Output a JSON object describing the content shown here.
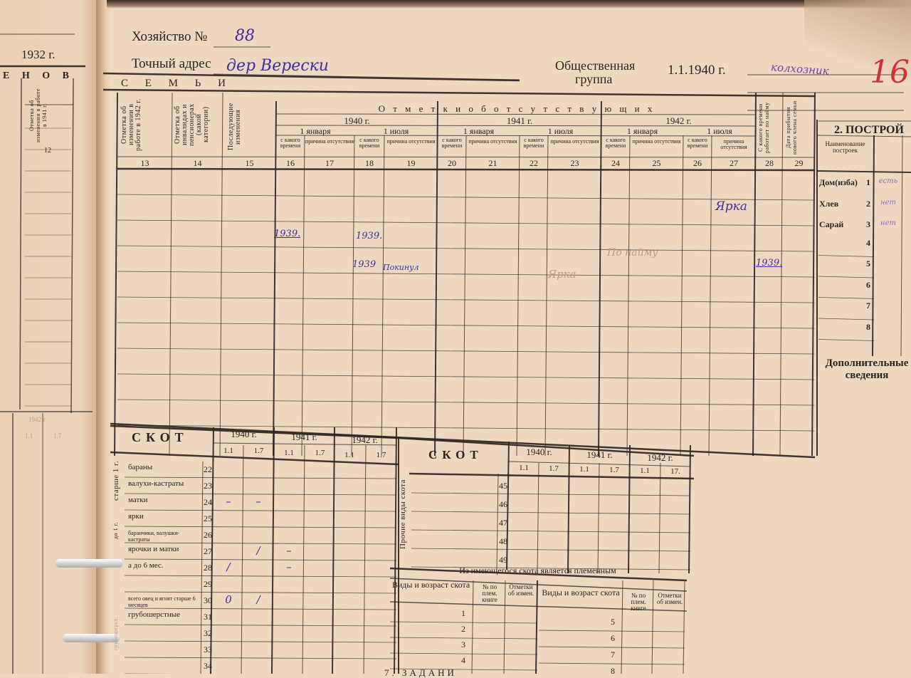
{
  "header": {
    "farm_label": "Хозяйство №",
    "farm_number": "88",
    "address_label": "Точный адрес",
    "address_value": "дер Верески",
    "group_label_line1": "Общественная",
    "group_label_line2": "группа",
    "group_date": "1.1.1940 г.",
    "group_value": "колхозник",
    "red_mark": "16"
  },
  "left_page": {
    "year": "1932 г.",
    "heading": "Е Н О В",
    "column_header": "Отметка об изменении в работе в 1941 г.",
    "column_number": "12",
    "bottom_year": "1942 г.",
    "bottom_periods": [
      "1.1",
      "1.7"
    ]
  },
  "families": {
    "title": "С Е М Ь И",
    "col13": "Отметка об изменении в работе в 1942 г.",
    "col14": "Отметка об инвалидах и пенсионерах (какой категории)",
    "col15": "Последующие изменения",
    "absence_title": "О т м е т к и   о б   о т с у т с т в у ю щ и х",
    "years": [
      "1940 г.",
      "1941 г.",
      "1942 г."
    ],
    "periods": [
      "1 января",
      "1 июля",
      "1 января",
      "1 июля",
      "1 января",
      "1 июля"
    ],
    "since_label": "с какого времени",
    "reason_label": "причина отсутствия",
    "col28": "С какого времени работает по найму",
    "col29": "Дата прибытия нового члена семьи",
    "column_numbers": [
      "13",
      "14",
      "15",
      "16",
      "17",
      "18",
      "19",
      "20",
      "21",
      "22",
      "23",
      "24",
      "25",
      "26",
      "27",
      "28",
      "29"
    ],
    "entries": {
      "col27_row2": "Ярка",
      "col16_row3": "1939.",
      "col18_row3": "1939.",
      "col18_row4": "1939",
      "col19_row4": "Покинул",
      "col24_row4": "По найму",
      "col22_row5": "Ярка",
      "col28_row4": "1939."
    }
  },
  "livestock_left": {
    "title": "СКОТ",
    "years": [
      "1940 г.",
      "1941 г.",
      "1942 г."
    ],
    "periods": [
      "1.1",
      "1.7"
    ],
    "group_older": "старше 1 г.",
    "group_younger": "до 1 г.",
    "group_coarse": "грубошерст.",
    "rows": [
      {
        "label": "бараны",
        "num": "22",
        "values": [
          "",
          "",
          "",
          "",
          "",
          ""
        ]
      },
      {
        "label": "валухи-кастраты",
        "num": "23",
        "values": [
          "",
          "",
          "",
          "",
          "",
          ""
        ]
      },
      {
        "label": "матки",
        "num": "24",
        "values": [
          "–",
          "–",
          "",
          "",
          "",
          ""
        ]
      },
      {
        "label": "ярки",
        "num": "25",
        "values": [
          "",
          "",
          "",
          "",
          "",
          ""
        ]
      },
      {
        "label": "баранчики, валушки-кастраты",
        "num": "26",
        "values": [
          "",
          "",
          "",
          "",
          "",
          ""
        ]
      },
      {
        "label": "ярочки и матки",
        "num": "27",
        "values": [
          "",
          "/",
          "–",
          "",
          "",
          ""
        ]
      },
      {
        "label": "а до 6 мес.",
        "num": "28",
        "values": [
          "/",
          "",
          "–",
          "",
          "",
          ""
        ]
      },
      {
        "label": "",
        "num": "29",
        "values": [
          "",
          "",
          "",
          "",
          "",
          ""
        ]
      },
      {
        "label": "всего овец и ягнят старше 6 месяцев",
        "num": "30",
        "values": [
          "0",
          "/",
          "",
          "",
          "",
          ""
        ]
      },
      {
        "label": "грубошерстные",
        "num": "31",
        "values": [
          "",
          "",
          "",
          "",
          "",
          ""
        ]
      },
      {
        "label": "",
        "num": "32",
        "values": [
          "",
          "",
          "",
          "",
          "",
          ""
        ]
      },
      {
        "label": "",
        "num": "33",
        "values": [
          "",
          "",
          "",
          "",
          "",
          ""
        ]
      },
      {
        "label": "",
        "num": "34",
        "values": [
          "",
          "",
          "",
          "",
          "",
          ""
        ]
      }
    ]
  },
  "livestock_right": {
    "title": "СКОТ",
    "years": [
      "1940 г.",
      "1941 г.",
      "1942 г."
    ],
    "periods": [
      "1.1",
      "1.7",
      "1.1",
      "1.7",
      "1.1",
      "17."
    ],
    "group_other": "Прочие виды скота",
    "row_numbers": [
      "45",
      "46",
      "47",
      "48",
      "49"
    ]
  },
  "breeding": {
    "title": "Из имеющегося скота является племенным",
    "col_kind": "Виды и возраст скота",
    "col_book": "№ по плем. книге",
    "col_marks": "Отметки об измен.",
    "row_numbers_left": [
      "1",
      "2",
      "3",
      "4"
    ],
    "row_numbers_right": [
      "5",
      "6",
      "7",
      "8"
    ]
  },
  "buildings": {
    "title": "2. ПОСТРОЙ",
    "col_name": "Наименование построек",
    "items": [
      {
        "label": "Дом(изба)",
        "num": "1",
        "value": "есть"
      },
      {
        "label": "Хлев",
        "num": "2",
        "value": "нет"
      },
      {
        "label": "Сарай",
        "num": "3",
        "value": "нет"
      },
      {
        "label": "",
        "num": "4",
        "value": ""
      },
      {
        "label": "",
        "num": "5",
        "value": ""
      },
      {
        "label": "",
        "num": "6",
        "value": ""
      },
      {
        "label": "",
        "num": "7",
        "value": ""
      },
      {
        "label": "",
        "num": "8",
        "value": ""
      }
    ],
    "extra_label": "Дополнительные сведения"
  },
  "footer": {
    "section_partial": "7. ЗАДАНИ"
  },
  "colors": {
    "paper": "#eed8c0",
    "ink_print": "#2a2420",
    "ink_hand": "#3b2fa0",
    "ink_red": "#d0303a"
  }
}
